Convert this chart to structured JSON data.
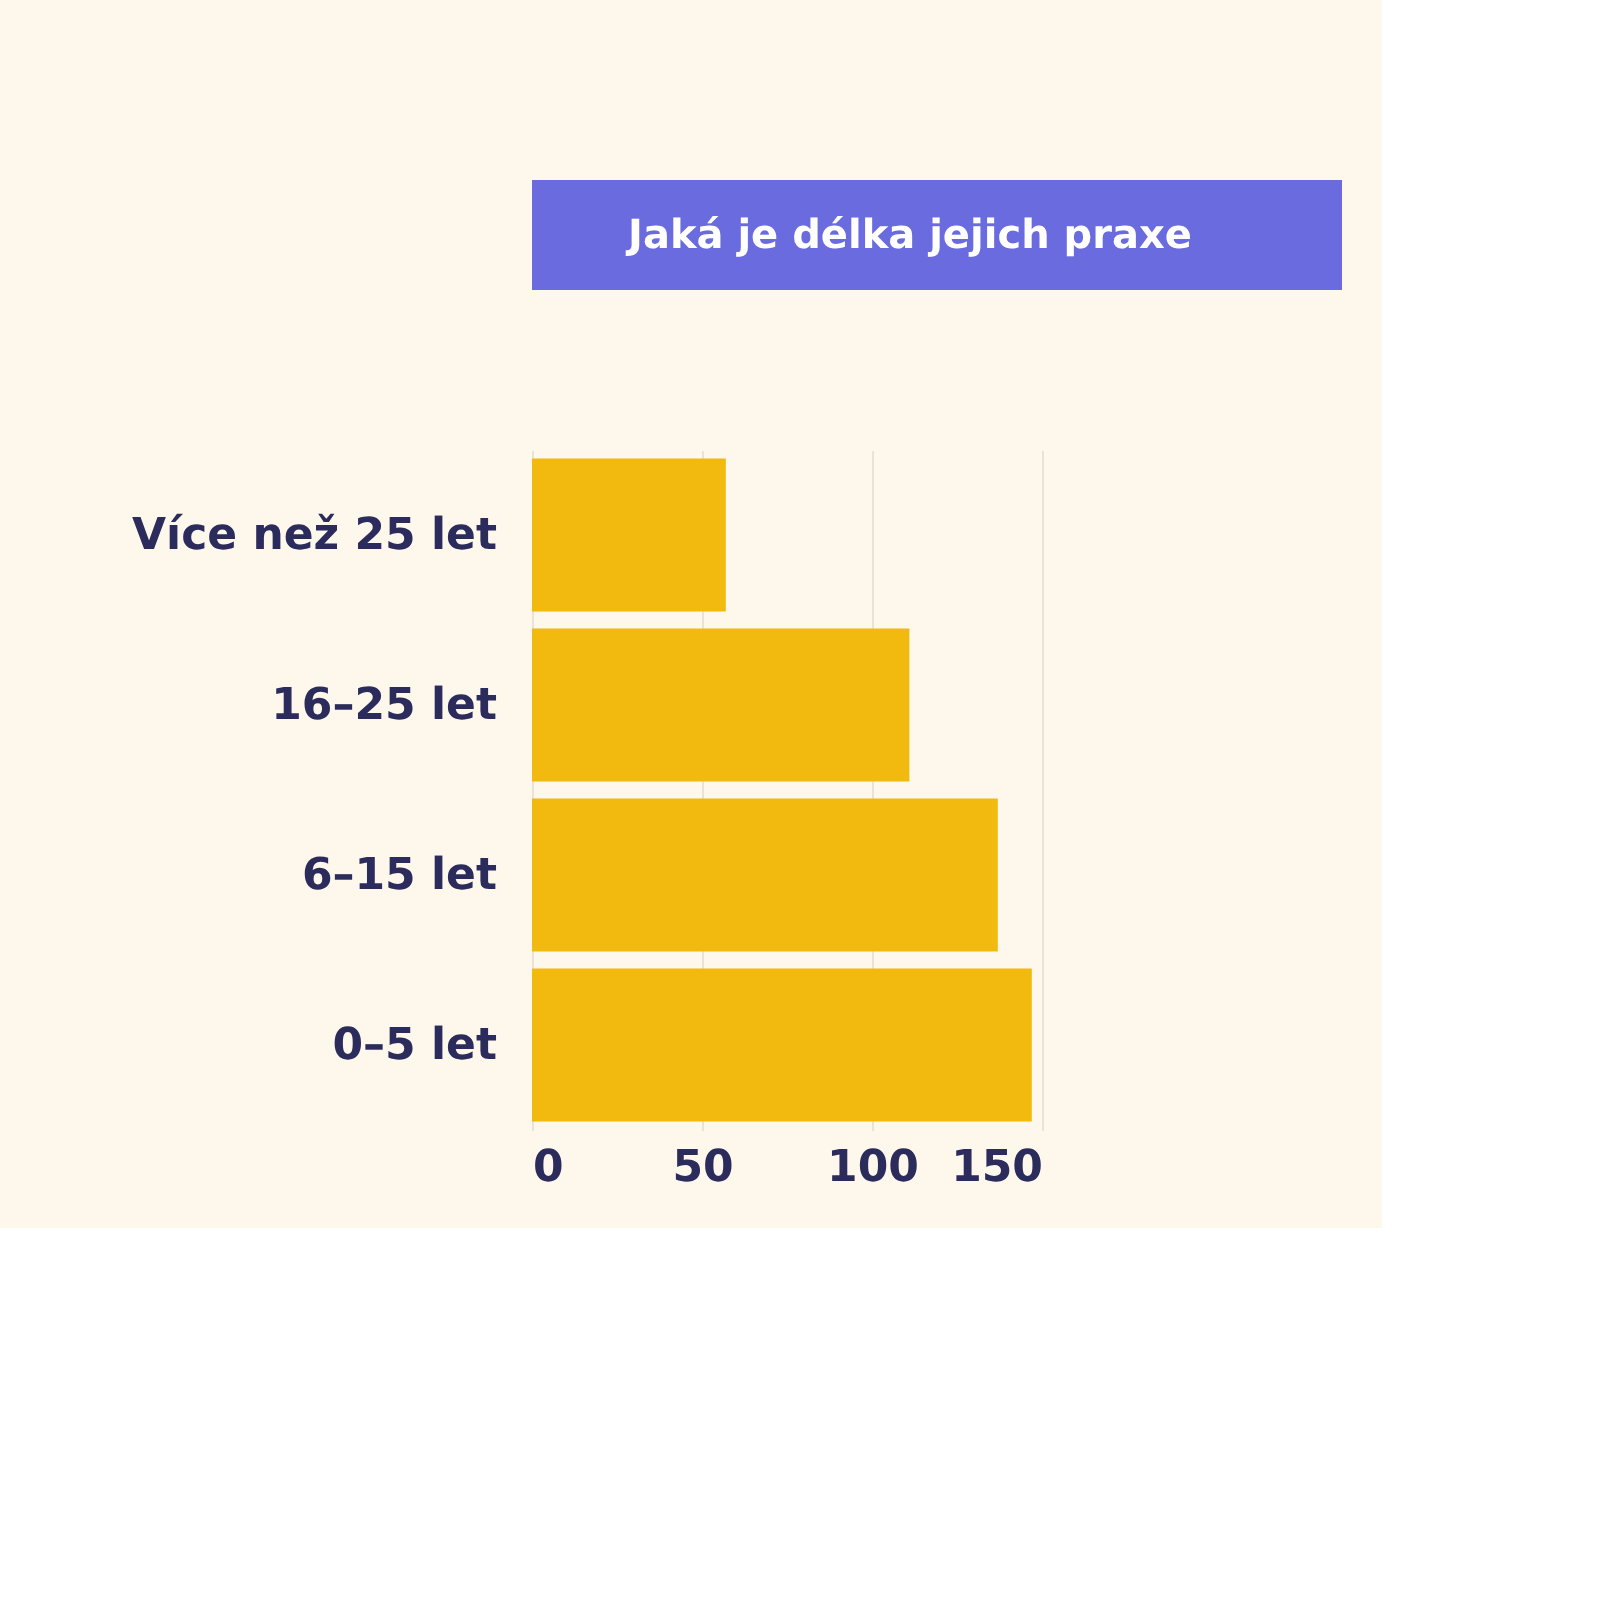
{
  "chart_data": {
    "type": "bar",
    "orientation": "horizontal",
    "title": "Jaká je délka jejich praxe",
    "categories": [
      "Více než 25 let",
      "16–25 let",
      "6–15 let",
      "0–5 let"
    ],
    "values": [
      57,
      111,
      137,
      147
    ],
    "color": "#f2b90f",
    "xlim": [
      0,
      150
    ],
    "xticks": [
      0,
      50,
      100,
      150
    ],
    "grid": "x"
  }
}
